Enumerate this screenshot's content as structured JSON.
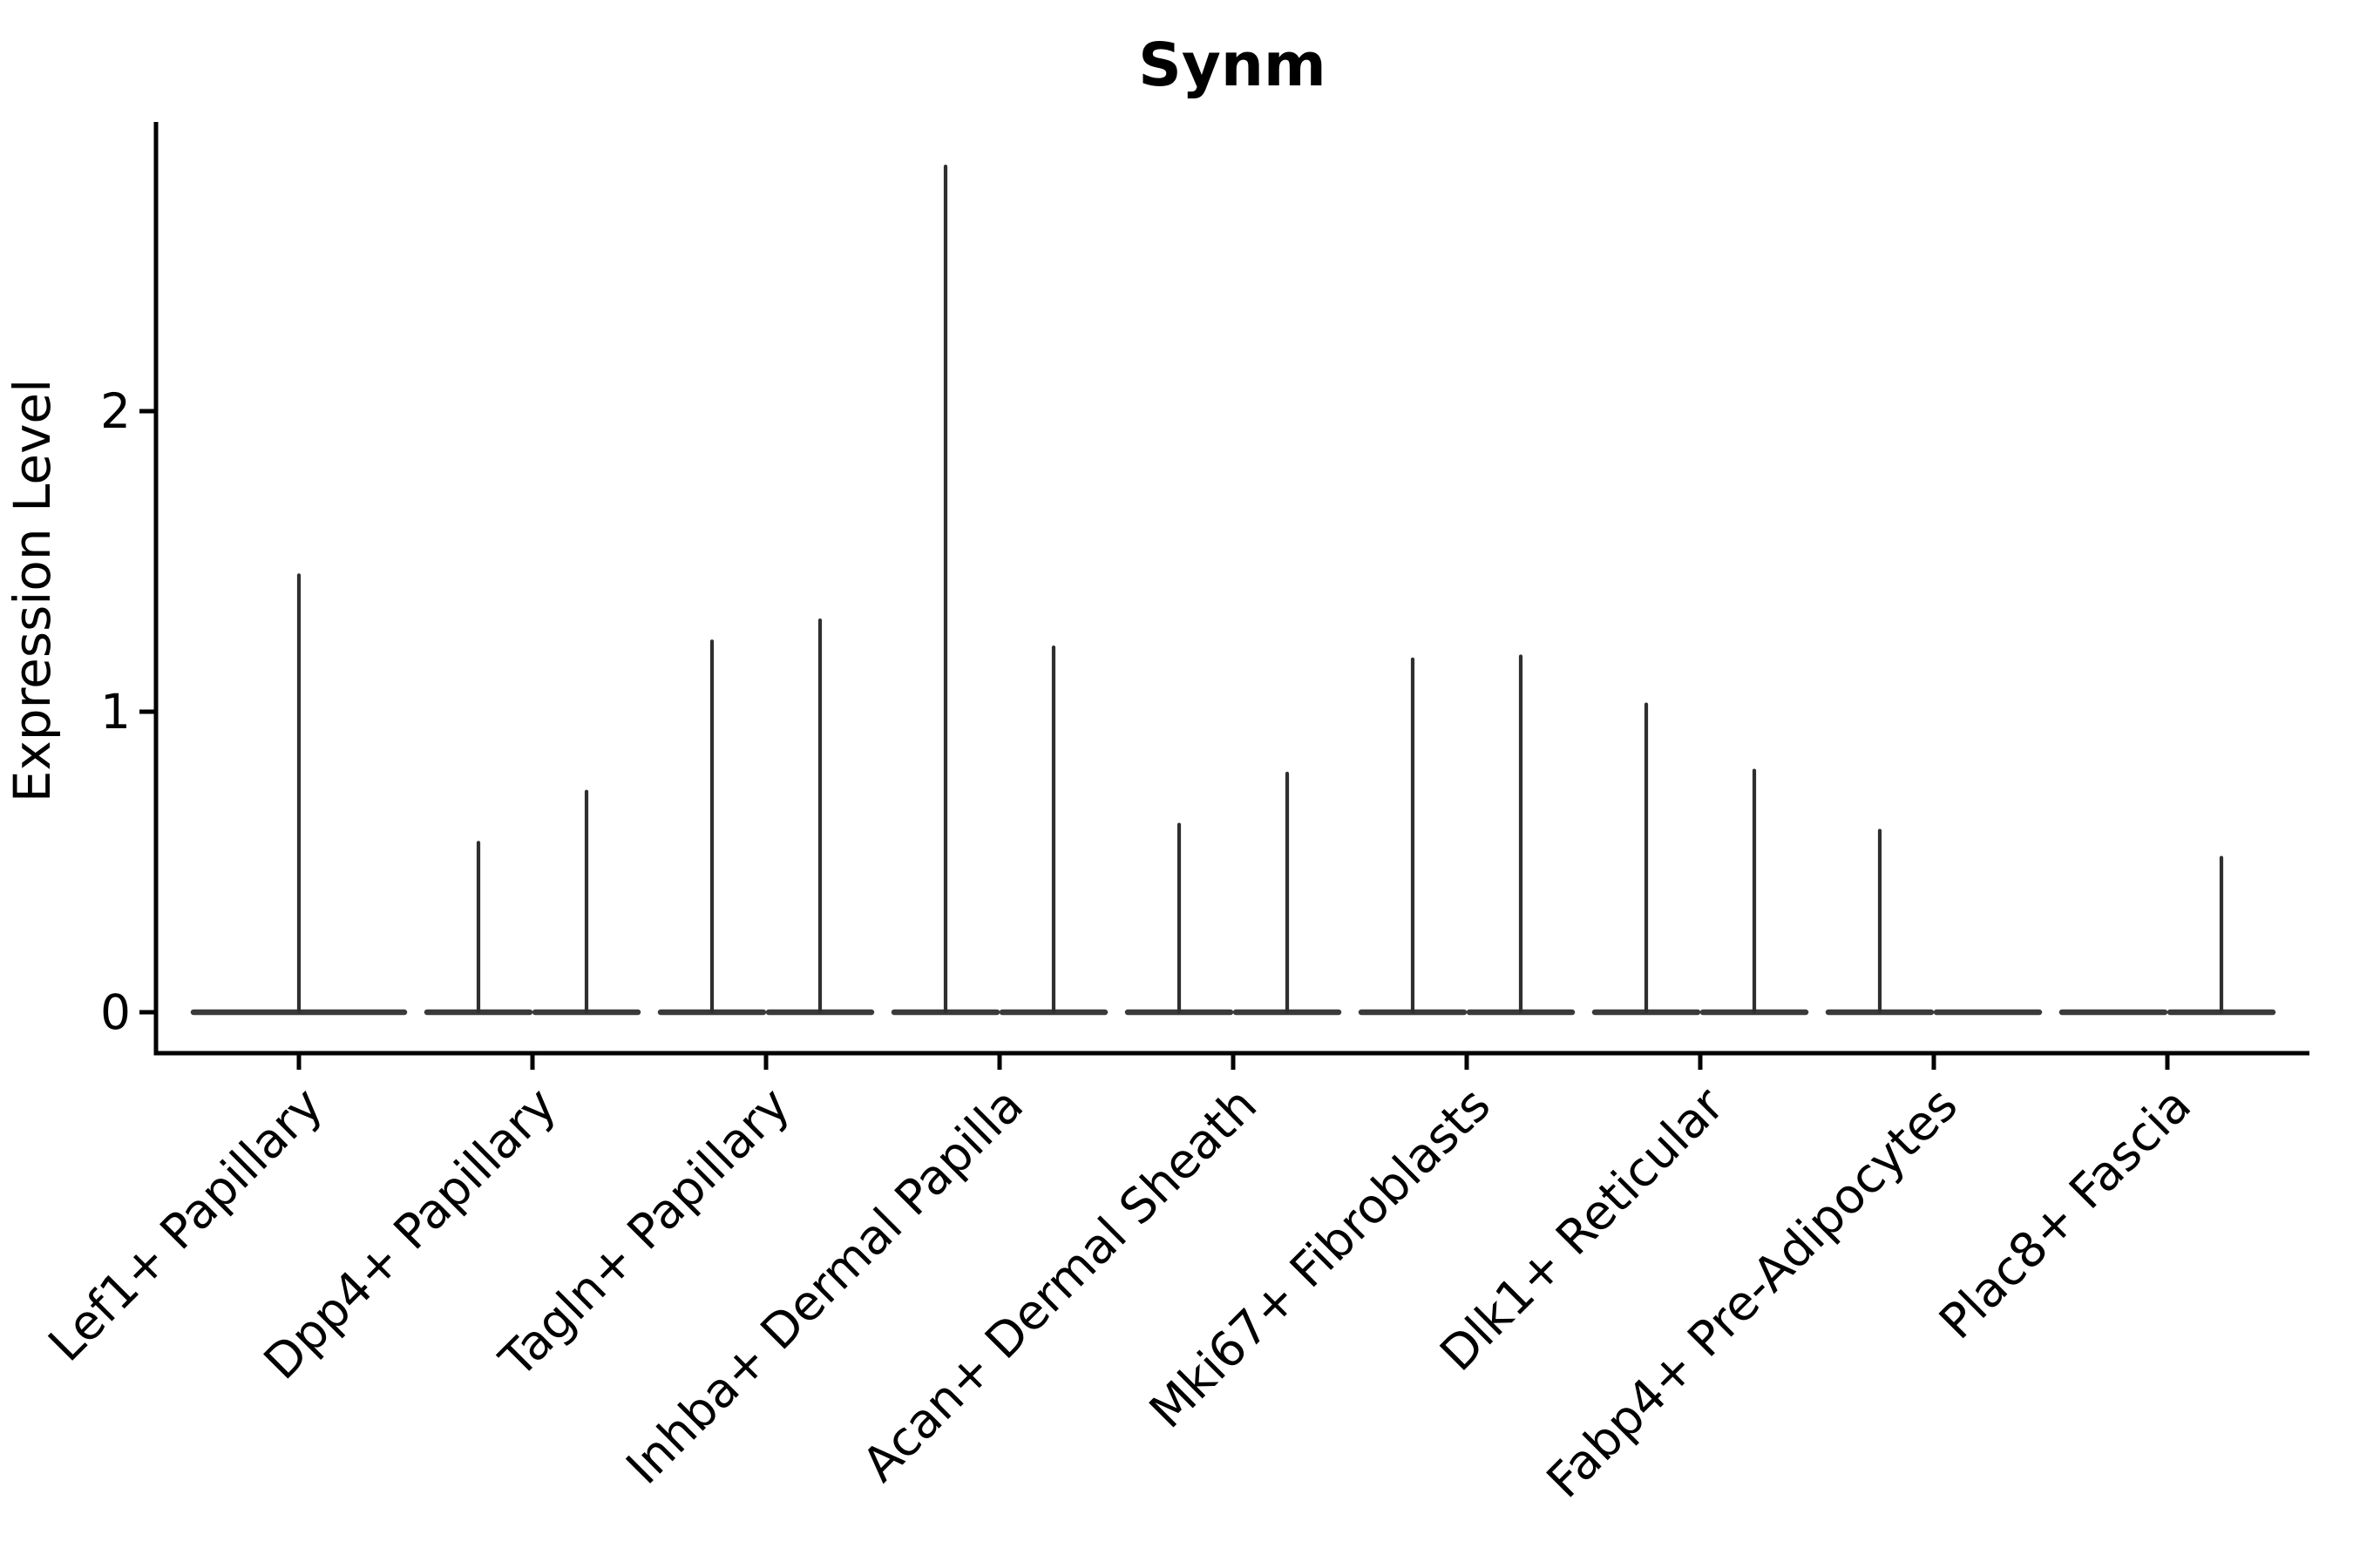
{
  "title": "Synm",
  "y_axis": {
    "label": "Expression Level",
    "tick_labels": [
      "0",
      "1",
      "2"
    ]
  },
  "chart_data": {
    "type": "violin",
    "title": "Synm",
    "xlabel": "",
    "ylabel": "Expression Level",
    "ylim": [
      0,
      2.95
    ],
    "yticks": [
      0,
      1,
      2
    ],
    "grid": false,
    "legend": "none",
    "description": "Collapsed violins: each violin is a flat horizontal base at expression 0 with a thin vertical tail reaching the peak value. Categories with two groups show two half-width violins side by side; 'full' means a single full-width violin, 'left'/'right' are half-width violins.",
    "categories": [
      "Lef1+ Papillary",
      "Dpp4+ Papillary",
      "Tagln+ Papillary",
      "Inhba+ Dermal Papilla",
      "Acan+ Dermal Sheath",
      "Mki67+ Fibroblasts",
      "Dlk1+ Reticular",
      "Fabp4+ Pre-Adipocytes",
      "Plac8+ Fascia"
    ],
    "violins": [
      {
        "category": "Lef1+ Papillary",
        "parts": [
          {
            "side": "full",
            "peak": 1.46
          }
        ]
      },
      {
        "category": "Dpp4+ Papillary",
        "parts": [
          {
            "side": "left",
            "peak": 0.57
          },
          {
            "side": "right",
            "peak": 0.74
          }
        ]
      },
      {
        "category": "Tagln+ Papillary",
        "parts": [
          {
            "side": "left",
            "peak": 1.24
          },
          {
            "side": "right",
            "peak": 1.31
          }
        ]
      },
      {
        "category": "Inhba+ Dermal Papilla",
        "parts": [
          {
            "side": "left",
            "peak": 2.82
          },
          {
            "side": "right",
            "peak": 1.22
          }
        ]
      },
      {
        "category": "Acan+ Dermal Sheath",
        "parts": [
          {
            "side": "left",
            "peak": 0.63
          },
          {
            "side": "right",
            "peak": 0.8
          }
        ]
      },
      {
        "category": "Mki67+ Fibroblasts",
        "parts": [
          {
            "side": "left",
            "peak": 1.18
          },
          {
            "side": "right",
            "peak": 1.19
          }
        ]
      },
      {
        "category": "Dlk1+ Reticular",
        "parts": [
          {
            "side": "left",
            "peak": 1.03
          },
          {
            "side": "right",
            "peak": 0.81
          }
        ]
      },
      {
        "category": "Fabp4+ Pre-Adipocytes",
        "parts": [
          {
            "side": "left",
            "peak": 0.61
          },
          {
            "side": "right",
            "peak": null
          }
        ]
      },
      {
        "category": "Plac8+ Fascia",
        "parts": [
          {
            "side": "left",
            "peak": null
          },
          {
            "side": "right",
            "peak": 0.52
          }
        ]
      }
    ],
    "style": {
      "background": "#ffffff",
      "axis_color": "#000000",
      "text_color": "#000000",
      "violin_base_color": "#3a3a3a",
      "violin_spike_color": "#2f2f2f"
    }
  }
}
